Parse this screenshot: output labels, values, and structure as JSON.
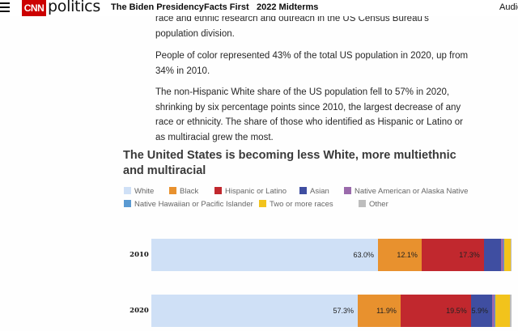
{
  "nav": {
    "logo_box": "CNN",
    "logo_word": "politics",
    "links": [
      "The Biden Presidency",
      "Facts First",
      "2022 Midterms"
    ],
    "audio": "Audio"
  },
  "article": {
    "paragraphs": [
      "race and ethnic research and outreach in the US Census Bureau's population division.",
      "People of color represented 43% of the total US population in 2020, up from 34% in 2010.",
      "The non-Hispanic White share of the US population fell to 57% in 2020, shrinking by six percentage points since 2010, the largest decrease of any race or ethnicity. The share of those who identified as Hispanic or Latino or as multiracial grew the most."
    ]
  },
  "chart_data": {
    "type": "bar",
    "orientation": "horizontal-stacked-100",
    "title": "The United States is becoming less White, more multiethnic and multiracial",
    "legend_placement": "top-left",
    "categories": [
      "2010",
      "2020"
    ],
    "series": [
      {
        "name": "White",
        "color": "#cfe0f6",
        "values": [
          63.0,
          57.3
        ],
        "labels": [
          "63.0%",
          "57.3%"
        ]
      },
      {
        "name": "Black",
        "color": "#e8912e",
        "values": [
          12.1,
          11.9
        ],
        "labels": [
          "12.1%",
          "11.9%"
        ]
      },
      {
        "name": "Hispanic or Latino",
        "color": "#c1282e",
        "values": [
          17.3,
          19.5
        ],
        "labels": [
          "17.3%",
          "19.5%"
        ]
      },
      {
        "name": "Asian",
        "color": "#3f4ea1",
        "values": [
          4.7,
          5.9
        ],
        "labels": [
          "",
          "5.9%"
        ]
      },
      {
        "name": "Native American or Alaska Native",
        "color": "#9a6aab",
        "values": [
          0.7,
          0.6
        ],
        "labels": [
          "",
          ""
        ]
      },
      {
        "name": "Native Hawaiian or Pacific Islander",
        "color": "#5a9ad2",
        "values": [
          0.2,
          0.2
        ],
        "labels": [
          "",
          ""
        ]
      },
      {
        "name": "Two or more races",
        "color": "#f2c31c",
        "values": [
          1.9,
          4.1
        ],
        "labels": [
          "",
          ""
        ]
      },
      {
        "name": "Other",
        "color": "#bdbdbd",
        "values": [
          0.2,
          0.5
        ],
        "labels": [
          "",
          ""
        ]
      }
    ]
  }
}
